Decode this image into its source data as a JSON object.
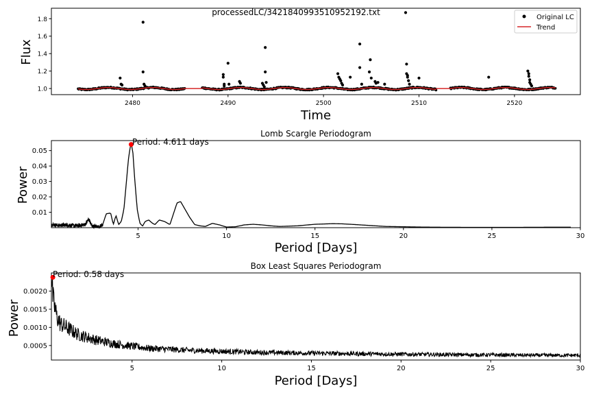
{
  "figure_title": "processedLC/3421840993510952192.txt",
  "chart_data": [
    {
      "id": "lightcurve",
      "type": "scatter",
      "title": "",
      "xlabel": "Time",
      "ylabel": "Flux",
      "xlim": [
        2471.5,
        2526.9
      ],
      "ylim": [
        0.93,
        1.92
      ],
      "xticks": [
        2480,
        2490,
        2500,
        2510,
        2520
      ],
      "yticks": [
        1.0,
        1.2,
        1.4,
        1.6,
        1.8
      ],
      "ytick_labels": [
        "1.0",
        "1.2",
        "1.4",
        "1.6",
        "1.8"
      ],
      "legend": {
        "placement": "top-right",
        "entries": [
          "Original LC",
          "Trend"
        ]
      },
      "series": [
        {
          "name": "Original LC",
          "kind": "points",
          "color": "#000000",
          "baseline_segments": [
            [
              2474.3,
              2485.5
            ],
            [
              2487.3,
              2511.8
            ],
            [
              2513.3,
              2524.3
            ]
          ],
          "baseline_flux": 1.0,
          "outliers": [
            [
              2478.7,
              1.12
            ],
            [
              2478.8,
              1.05
            ],
            [
              2478.9,
              1.04
            ],
            [
              2481.1,
              1.76
            ],
            [
              2481.1,
              1.19
            ],
            [
              2481.2,
              1.05
            ],
            [
              2481.3,
              1.03
            ],
            [
              2489.5,
              1.16
            ],
            [
              2489.5,
              1.13
            ],
            [
              2489.6,
              1.05
            ],
            [
              2489.6,
              1.03
            ],
            [
              2490.0,
              1.29
            ],
            [
              2490.1,
              1.05
            ],
            [
              2491.2,
              1.08
            ],
            [
              2491.3,
              1.06
            ],
            [
              2493.6,
              1.06
            ],
            [
              2493.7,
              1.04
            ],
            [
              2493.8,
              1.02
            ],
            [
              2493.9,
              1.47
            ],
            [
              2493.9,
              1.19
            ],
            [
              2494.0,
              1.07
            ],
            [
              2501.5,
              1.17
            ],
            [
              2501.6,
              1.13
            ],
            [
              2501.7,
              1.11
            ],
            [
              2501.8,
              1.09
            ],
            [
              2501.9,
              1.06
            ],
            [
              2502.0,
              1.04
            ],
            [
              2502.8,
              1.13
            ],
            [
              2503.8,
              1.51
            ],
            [
              2503.8,
              1.24
            ],
            [
              2504.0,
              1.05
            ],
            [
              2504.9,
              1.33
            ],
            [
              2504.8,
              1.19
            ],
            [
              2505.0,
              1.12
            ],
            [
              2505.4,
              1.08
            ],
            [
              2505.5,
              1.06
            ],
            [
              2505.7,
              1.07
            ],
            [
              2506.4,
              1.05
            ],
            [
              2508.6,
              1.87
            ],
            [
              2508.7,
              1.28
            ],
            [
              2508.7,
              1.17
            ],
            [
              2508.8,
              1.15
            ],
            [
              2508.8,
              1.13
            ],
            [
              2508.9,
              1.09
            ],
            [
              2509.0,
              1.05
            ],
            [
              2510.0,
              1.12
            ],
            [
              2517.3,
              1.13
            ],
            [
              2521.4,
              1.2
            ],
            [
              2521.5,
              1.17
            ],
            [
              2521.5,
              1.14
            ],
            [
              2521.6,
              1.1
            ],
            [
              2521.6,
              1.07
            ],
            [
              2521.7,
              1.05
            ],
            [
              2521.8,
              1.03
            ]
          ]
        },
        {
          "name": "Trend",
          "kind": "line",
          "color": "#d62728",
          "segments": [
            [
              2474.3,
              2485.5
            ],
            [
              2487.3,
              2511.8
            ],
            [
              2513.3,
              2524.3
            ]
          ]
        }
      ]
    },
    {
      "id": "lombscargle",
      "type": "line",
      "title": "Lomb Scargle Periodogram",
      "xlabel": "Period [Days]",
      "ylabel": "Power",
      "xlim": [
        0.1,
        30
      ],
      "ylim": [
        0,
        0.0565
      ],
      "xticks": [
        5,
        10,
        15,
        20,
        25,
        30
      ],
      "yticks": [
        0.01,
        0.02,
        0.03,
        0.04,
        0.05
      ],
      "ytick_labels": [
        "0.01",
        "0.02",
        "0.03",
        "0.04",
        "0.05"
      ],
      "series": [
        {
          "name": "",
          "color": "#000000",
          "x": [
            0.1,
            0.5,
            1,
            1.5,
            2,
            2.2,
            2.3,
            2.4,
            2.6,
            2.8,
            3,
            3.2,
            3.45,
            3.6,
            3.75,
            3.9,
            4.05,
            4.2,
            4.35,
            4.45,
            4.55,
            4.611,
            4.7,
            4.8,
            4.95,
            5.1,
            5.25,
            5.4,
            5.6,
            5.8,
            5.95,
            6.2,
            6.5,
            6.8,
            7.0,
            7.2,
            7.4,
            7.6,
            7.9,
            8.2,
            8.5,
            8.8,
            9.2,
            9.6,
            10,
            10.5,
            11,
            11.5,
            12,
            12.5,
            13,
            14,
            15,
            16,
            16.5,
            17,
            18,
            19,
            20,
            21,
            22,
            24,
            26,
            28,
            29.5
          ],
          "y": [
            0.002,
            0.0015,
            0.0018,
            0.0012,
            0.002,
            0.0055,
            0.0035,
            0.001,
            0.0008,
            0.0005,
            0.002,
            0.009,
            0.0095,
            0.002,
            0.008,
            0.002,
            0.004,
            0.012,
            0.031,
            0.044,
            0.052,
            0.054,
            0.05,
            0.033,
            0.012,
            0.003,
            0.001,
            0.004,
            0.005,
            0.003,
            0.002,
            0.005,
            0.004,
            0.002,
            0.009,
            0.016,
            0.017,
            0.013,
            0.007,
            0.002,
            0.0012,
            0.0008,
            0.0028,
            0.0018,
            0.0004,
            0.0006,
            0.0018,
            0.0022,
            0.0018,
            0.0012,
            0.0008,
            0.0012,
            0.0022,
            0.0026,
            0.0025,
            0.0022,
            0.0015,
            0.0008,
            0.0006,
            0.0004,
            0.0003,
            0.0002,
            0.0002,
            0.0003,
            0.0003
          ]
        }
      ],
      "annotation": {
        "text": "Period: 4.611 days",
        "x": 4.611,
        "y": 0.054,
        "color": "#ff0000"
      }
    },
    {
      "id": "bls",
      "type": "line",
      "title": "Box Least Squares Periodogram",
      "xlabel": "Period [Days]",
      "ylabel": "Power",
      "xlim": [
        0.5,
        30
      ],
      "ylim": [
        0.0001,
        0.0025
      ],
      "xticks": [
        5,
        10,
        15,
        20,
        25,
        30
      ],
      "yticks": [
        0.0005,
        0.001,
        0.0015,
        0.002
      ],
      "ytick_labels": [
        "0.0005",
        "0.0010",
        "0.0015",
        "0.0020"
      ],
      "series": [
        {
          "name": "",
          "color": "#000000",
          "envelope_x": [
            0.5,
            0.6,
            0.8,
            1,
            1.5,
            2,
            3,
            4,
            5,
            6,
            7,
            8,
            10,
            12,
            15,
            18,
            20,
            22,
            25,
            28,
            30
          ],
          "envelope_y": [
            0.0024,
            0.00175,
            0.0013,
            0.0011,
            0.00095,
            0.0008,
            0.00065,
            0.00055,
            0.00048,
            0.00042,
            0.0004,
            0.00037,
            0.00034,
            0.00031,
            0.00029,
            0.00027,
            0.00026,
            0.00025,
            0.00024,
            0.00023,
            0.00023
          ]
        }
      ],
      "annotation": {
        "text": "Period: 0.58 days",
        "x": 0.58,
        "y": 0.00238,
        "color": "#ff0000"
      }
    }
  ]
}
